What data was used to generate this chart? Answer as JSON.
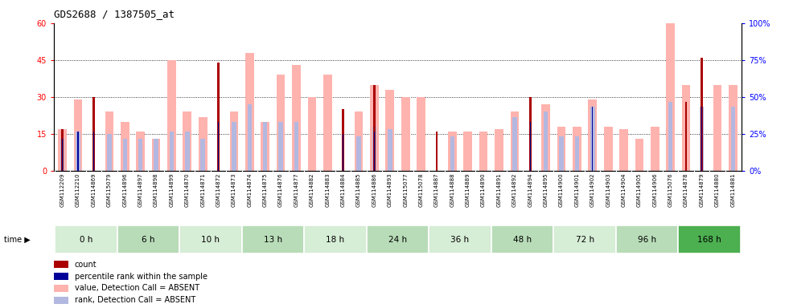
{
  "title": "GDS2688 / 1387505_at",
  "samples": [
    "GSM112209",
    "GSM112210",
    "GSM114869",
    "GSM115079",
    "GSM114896",
    "GSM114897",
    "GSM114898",
    "GSM114899",
    "GSM114870",
    "GSM114871",
    "GSM114872",
    "GSM114873",
    "GSM114874",
    "GSM114875",
    "GSM114876",
    "GSM114877",
    "GSM114882",
    "GSM114883",
    "GSM114884",
    "GSM114885",
    "GSM114886",
    "GSM114893",
    "GSM115077",
    "GSM115078",
    "GSM114887",
    "GSM114888",
    "GSM114889",
    "GSM114890",
    "GSM114891",
    "GSM114892",
    "GSM114894",
    "GSM114895",
    "GSM114900",
    "GSM114901",
    "GSM114902",
    "GSM114903",
    "GSM114904",
    "GSM114905",
    "GSM114906",
    "GSM115076",
    "GSM114878",
    "GSM114879",
    "GSM114880",
    "GSM114881"
  ],
  "count_values": [
    17,
    16,
    30,
    0,
    0,
    0,
    0,
    0,
    0,
    0,
    44,
    0,
    0,
    0,
    0,
    0,
    0,
    0,
    25,
    0,
    35,
    0,
    0,
    0,
    16,
    0,
    0,
    0,
    0,
    0,
    30,
    0,
    0,
    0,
    0,
    0,
    0,
    0,
    0,
    0,
    28,
    46,
    0,
    0
  ],
  "value_absent": [
    17,
    29,
    0,
    24,
    20,
    16,
    13,
    45,
    24,
    22,
    0,
    24,
    48,
    20,
    39,
    43,
    30,
    39,
    0,
    24,
    35,
    33,
    30,
    30,
    0,
    16,
    16,
    16,
    17,
    24,
    0,
    27,
    18,
    18,
    29,
    18,
    17,
    13,
    18,
    65,
    35,
    0,
    35,
    35
  ],
  "rank_absent": [
    13,
    16,
    0,
    15,
    13,
    13,
    13,
    16,
    16,
    13,
    0,
    20,
    27,
    20,
    20,
    20,
    0,
    0,
    0,
    14,
    18,
    17,
    0,
    0,
    0,
    14,
    0,
    0,
    0,
    22,
    0,
    24,
    14,
    14,
    26,
    0,
    0,
    0,
    0,
    28,
    0,
    26,
    0,
    26
  ],
  "percentile_rank": [
    13,
    16,
    16,
    0,
    0,
    0,
    0,
    0,
    0,
    0,
    20,
    0,
    0,
    0,
    0,
    0,
    0,
    0,
    15,
    0,
    16,
    0,
    0,
    0,
    0,
    0,
    0,
    0,
    0,
    0,
    20,
    0,
    0,
    0,
    26,
    0,
    0,
    0,
    0,
    0,
    0,
    26,
    0,
    0
  ],
  "time_groups": [
    {
      "label": "0 h",
      "start": 0,
      "end": 4,
      "color": "#d6edd6"
    },
    {
      "label": "6 h",
      "start": 4,
      "end": 8,
      "color": "#b8dcb8"
    },
    {
      "label": "10 h",
      "start": 8,
      "end": 12,
      "color": "#d6edd6"
    },
    {
      "label": "13 h",
      "start": 12,
      "end": 16,
      "color": "#b8dcb8"
    },
    {
      "label": "18 h",
      "start": 16,
      "end": 20,
      "color": "#d6edd6"
    },
    {
      "label": "24 h",
      "start": 20,
      "end": 24,
      "color": "#b8dcb8"
    },
    {
      "label": "36 h",
      "start": 24,
      "end": 28,
      "color": "#d6edd6"
    },
    {
      "label": "48 h",
      "start": 28,
      "end": 32,
      "color": "#b8dcb8"
    },
    {
      "label": "72 h",
      "start": 32,
      "end": 36,
      "color": "#d6edd6"
    },
    {
      "label": "96 h",
      "start": 36,
      "end": 40,
      "color": "#b8dcb8"
    },
    {
      "label": "168 h",
      "start": 40,
      "end": 44,
      "color": "#4caf50"
    }
  ],
  "ylim_left": [
    0,
    60
  ],
  "ylim_right": [
    0,
    100
  ],
  "yticks_left": [
    0,
    15,
    30,
    45,
    60
  ],
  "yticks_right": [
    0,
    25,
    50,
    75,
    100
  ],
  "count_color": "#aa0000",
  "value_absent_color": "#ffb3ae",
  "rank_absent_color": "#b3b8e0",
  "percentile_color": "#000099",
  "plot_bg_color": "#ffffff",
  "xtick_bg_color": "#c8c8c8"
}
